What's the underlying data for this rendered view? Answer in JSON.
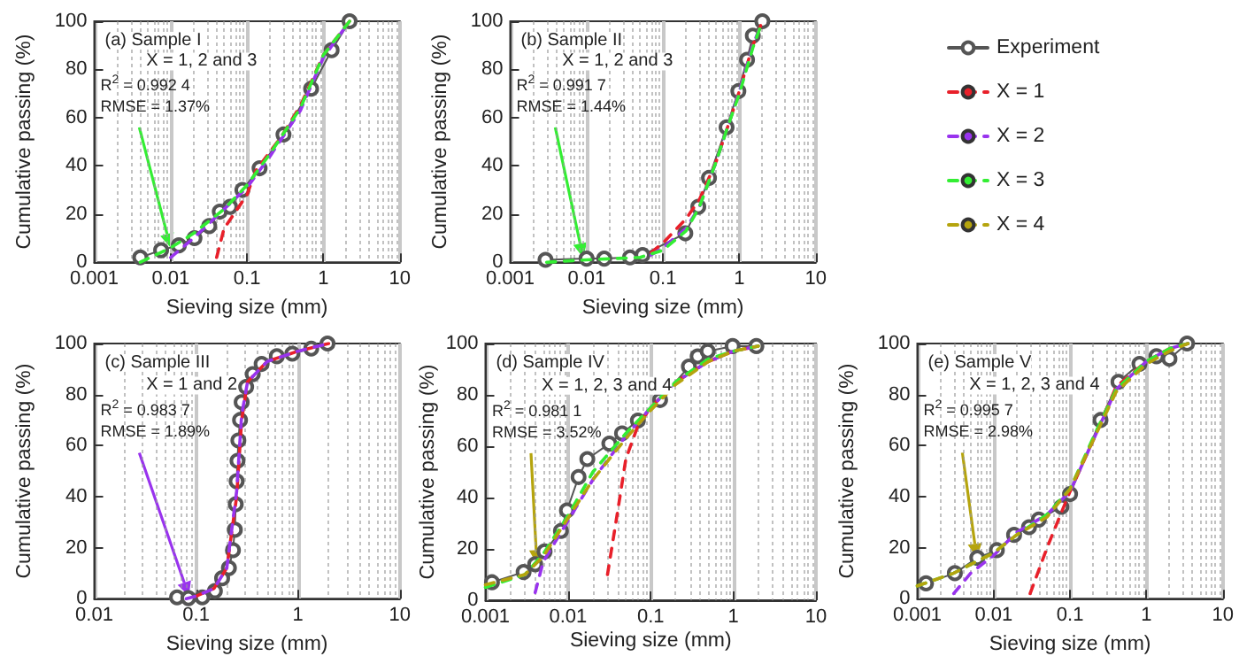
{
  "chart_data": [
    {
      "type": "line",
      "xlabel": "Sieving size (mm)",
      "ylabel": "Cumulative passing (%)",
      "log": "x",
      "grid": "x",
      "xlim": [
        0.001,
        10
      ],
      "xticks": [
        0.001,
        0.01,
        0.1,
        1,
        10
      ],
      "ylim": [
        0,
        100
      ],
      "yticks": [
        0,
        20,
        40,
        60,
        80,
        100
      ],
      "annotations": [
        "(a) Sample I",
        "X = 1, 2 and 3",
        {
          "text": "R$^{2}$ = 0.992 4\nRMSE = 1.37%",
          "x": 0.01,
          "y": 6
        }
      ],
      "series": [
        {
          "color": "#555555",
          "marker": "circle",
          "line_style": "solid",
          "x": [
            0.004,
            0.0075,
            0.0128,
            0.0205,
            0.032,
            0.044,
            0.06,
            0.087,
            0.146,
            0.3,
            0.69,
            1.28,
            2.2
          ],
          "values": [
            2,
            5,
            7,
            10,
            15,
            21,
            23,
            30,
            39,
            53,
            72,
            88,
            100
          ]
        },
        {
          "color": "#e8202a",
          "marker": "none",
          "line_style": "dashed",
          "x": [
            0.04,
            0.05,
            0.1,
            0.13,
            0.28,
            0.5,
            1,
            2.2
          ],
          "values": [
            2,
            14,
            28,
            38,
            52,
            65,
            86,
            100
          ]
        },
        {
          "color": "#9933ee",
          "marker": "none",
          "line_style": "dashed",
          "x": [
            0.01,
            0.02,
            0.05,
            0.1,
            0.2,
            0.5,
            1,
            2.2
          ],
          "values": [
            2,
            10,
            22,
            31,
            44,
            63,
            85,
            100
          ]
        },
        {
          "color": "#33ee33",
          "marker": "none",
          "line_style": "dashed",
          "x": [
            0.004,
            0.01,
            0.02,
            0.05,
            0.1,
            0.2,
            0.5,
            1,
            2.2
          ],
          "values": [
            0,
            6,
            12,
            22,
            32,
            45,
            64,
            86,
            100
          ]
        }
      ]
    },
    {
      "type": "line",
      "xlabel": "Sieving size (mm)",
      "ylabel": "Cumulative passing (%)",
      "log": "x",
      "grid": "x",
      "xlim": [
        0.001,
        10
      ],
      "xticks": [
        0.001,
        0.01,
        0.1,
        1,
        10
      ],
      "ylim": [
        0,
        100
      ],
      "yticks": [
        0,
        20,
        40,
        60,
        80,
        100
      ],
      "annotations": [
        "(b) Sample II",
        "X = 1, 2 and 3",
        {
          "text": "R$^{2}$ = 0.991 7\nRMSE = 1.44%",
          "x": 0.009,
          "y": 2
        }
      ],
      "series": [
        {
          "color": "#555555",
          "marker": "circle",
          "line_style": "solid",
          "x": [
            0.0029,
            0.01,
            0.017,
            0.037,
            0.054,
            0.196,
            0.29,
            0.4,
            0.68,
            0.97,
            1.26,
            1.5,
            2.0
          ],
          "values": [
            1,
            1.5,
            1.5,
            2,
            3,
            12,
            23,
            35,
            56,
            71,
            84,
            94,
            100
          ]
        },
        {
          "color": "#e8202a",
          "marker": "none",
          "line_style": "dashed",
          "x": [
            0.07,
            0.1,
            0.2,
            0.3,
            0.5,
            0.7,
            1,
            1.5,
            2
          ],
          "values": [
            4,
            8,
            18,
            26,
            42,
            56,
            71,
            90,
            100
          ]
        },
        {
          "color": "#9933ee",
          "marker": "none",
          "line_style": "dashed",
          "x": [
            0.07,
            0.1,
            0.2,
            0.3,
            0.5,
            0.7,
            1,
            1.5,
            2
          ],
          "values": [
            3,
            6,
            14,
            23,
            42,
            56,
            71,
            90,
            100
          ]
        },
        {
          "color": "#33ee33",
          "marker": "none",
          "line_style": "dashed",
          "x": [
            0.003,
            0.01,
            0.05,
            0.1,
            0.2,
            0.3,
            0.5,
            0.7,
            1,
            1.5,
            2
          ],
          "values": [
            0,
            1,
            2,
            5,
            13,
            23,
            42,
            56,
            70,
            89,
            100
          ]
        }
      ]
    },
    {
      "type": "line",
      "xlabel": "Sieving size (mm)",
      "ylabel": "Cumulative passing (%)",
      "log": "x",
      "grid": "x",
      "xlim": [
        0.01,
        10
      ],
      "xticks": [
        0.01,
        0.1,
        1,
        10
      ],
      "ylim": [
        0,
        100
      ],
      "yticks": [
        0,
        20,
        40,
        60,
        80,
        100
      ],
      "annotations": [
        "(c) Sample III",
        "X = 1 and 2",
        {
          "text": "R$^{2}$ = 0.983 7\nRMSE = 1.89%",
          "x": 0.085,
          "y": 1
        }
      ],
      "series": [
        {
          "color": "#555555",
          "marker": "circle",
          "line_style": "solid",
          "x": [
            0.065,
            0.084,
            0.115,
            0.153,
            0.18,
            0.21,
            0.23,
            0.24,
            0.245,
            0.25,
            0.255,
            0.26,
            0.27,
            0.28,
            0.31,
            0.36,
            0.44,
            0.62,
            0.88,
            1.35,
            1.95
          ],
          "values": [
            0.5,
            0.2,
            0.5,
            3,
            8,
            12,
            19,
            27,
            37,
            46,
            54,
            62,
            70,
            77,
            83,
            88,
            92,
            95,
            96,
            98,
            100
          ]
        },
        {
          "color": "#e8202a",
          "marker": "none",
          "line_style": "dashed",
          "x": [
            0.1,
            0.15,
            0.2,
            0.25,
            0.28,
            0.32,
            0.5,
            1,
            2
          ],
          "values": [
            1,
            4,
            12,
            40,
            70,
            85,
            93,
            97,
            100
          ]
        },
        {
          "color": "#9933ee",
          "marker": "none",
          "line_style": "dashed",
          "x": [
            0.08,
            0.1,
            0.15,
            0.2,
            0.25,
            0.28,
            0.32,
            0.5,
            1,
            2
          ],
          "values": [
            0,
            1,
            4,
            12,
            42,
            72,
            85,
            93,
            97,
            100
          ]
        }
      ]
    },
    {
      "type": "line",
      "xlabel": "Sieving size (mm)",
      "ylabel": "Cumulative passing (%)",
      "log": "x",
      "grid": "x",
      "legend": "top right",
      "xlim": [
        0.001,
        10
      ],
      "xticks": [
        0.001,
        0.01,
        0.1,
        1,
        10
      ],
      "ylim": [
        0,
        100
      ],
      "yticks": [
        0,
        20,
        40,
        60,
        80,
        100
      ],
      "annotations": [
        "(d) Sample IV",
        "X = 1, 2, 3 and 4",
        {
          "text": "R$^{2}$ = 0.981 1\nRMSE = 3.52%",
          "x": 0.0042,
          "y": 14
        }
      ],
      "series": [
        {
          "name": "Experiment",
          "color": "#555555",
          "marker": "circle",
          "line_style": "solid",
          "x": [
            0.0012,
            0.0029,
            0.004,
            0.0052,
            0.0082,
            0.0097,
            0.0134,
            0.0171,
            0.0316,
            0.045,
            0.07,
            0.13,
            0.29,
            0.37,
            0.49,
            0.98,
            1.9
          ],
          "values": [
            7,
            11,
            14,
            19,
            27,
            35,
            48,
            55,
            61,
            65,
            70,
            78,
            91,
            95,
            97,
            99,
            99
          ]
        },
        {
          "name": "X = 1",
          "color": "#e8202a",
          "marker": "none",
          "line_style": "dashed",
          "x": [
            0.03,
            0.04,
            0.05,
            0.07,
            0.1,
            0.2,
            0.5,
            1,
            2
          ],
          "values": [
            10,
            35,
            55,
            68,
            75,
            85,
            93,
            97,
            99
          ]
        },
        {
          "name": "X = 2",
          "color": "#9933ee",
          "marker": "none",
          "line_style": "dashed",
          "x": [
            0.004,
            0.005,
            0.01,
            0.02,
            0.05,
            0.1,
            0.2,
            0.5,
            1,
            2
          ],
          "values": [
            3,
            15,
            31,
            47,
            64,
            75,
            85,
            93,
            97,
            99
          ]
        },
        {
          "name": "X = 3",
          "color": "#33ee33",
          "marker": "none",
          "line_style": "dashed",
          "x": [
            0.001,
            0.003,
            0.005,
            0.01,
            0.02,
            0.05,
            0.1,
            0.2,
            0.5,
            1,
            2
          ],
          "values": [
            5,
            10,
            18,
            33,
            50,
            65,
            75,
            85,
            94,
            97,
            99
          ]
        },
        {
          "name": "X = 4",
          "color": "#b5a40e",
          "marker": "none",
          "line_style": "dashed",
          "x": [
            0.001,
            0.003,
            0.005,
            0.01,
            0.02,
            0.05,
            0.1,
            0.2,
            0.5,
            1,
            2
          ],
          "values": [
            6,
            10,
            17,
            32,
            47,
            63,
            74,
            84,
            93,
            97,
            99
          ]
        }
      ]
    },
    {
      "type": "line",
      "xlabel": "Sieving size (mm)",
      "ylabel": "Cumulative passing (%)",
      "log": "x",
      "grid": "x",
      "xlim": [
        0.001,
        10
      ],
      "xticks": [
        0.001,
        0.01,
        0.1,
        1,
        10
      ],
      "ylim": [
        0,
        100
      ],
      "yticks": [
        0,
        20,
        40,
        60,
        80,
        100
      ],
      "annotations": [
        "(e) Sample V",
        "X = 1, 2, 3 and 4",
        {
          "text": "R$^{2}$ = 0.995 7\nRMSE = 2.98%",
          "x": 0.006,
          "y": 16
        }
      ],
      "series": [
        {
          "color": "#555555",
          "marker": "circle",
          "line_style": "solid",
          "x": [
            0.0013,
            0.0031,
            0.0061,
            0.011,
            0.0185,
            0.029,
            0.039,
            0.077,
            0.1,
            0.25,
            0.43,
            0.81,
            1.35,
            2.0,
            3.4
          ],
          "values": [
            6,
            10,
            16,
            19,
            25,
            28,
            31,
            36,
            41,
            70,
            85,
            92,
            95,
            94,
            100
          ]
        },
        {
          "color": "#e8202a",
          "marker": "none",
          "line_style": "dashed",
          "x": [
            0.03,
            0.05,
            0.08,
            0.1,
            0.2,
            0.4,
            1,
            2,
            3.5
          ],
          "values": [
            2,
            20,
            35,
            42,
            62,
            83,
            93,
            98,
            100
          ]
        },
        {
          "color": "#9933ee",
          "marker": "none",
          "line_style": "dashed",
          "x": [
            0.003,
            0.005,
            0.01,
            0.02,
            0.05,
            0.1,
            0.2,
            0.4,
            1,
            2,
            3.5
          ],
          "values": [
            2,
            10,
            17,
            26,
            33,
            42,
            62,
            82,
            93,
            98,
            100
          ]
        },
        {
          "color": "#33ee33",
          "marker": "none",
          "line_style": "dashed",
          "x": [
            0.001,
            0.003,
            0.01,
            0.02,
            0.05,
            0.1,
            0.2,
            0.4,
            1,
            2,
            3.5
          ],
          "values": [
            5,
            10,
            18,
            25,
            33,
            43,
            63,
            82,
            93,
            98,
            100
          ]
        },
        {
          "color": "#b5a40e",
          "marker": "none",
          "line_style": "dashed",
          "x": [
            0.001,
            0.003,
            0.01,
            0.02,
            0.05,
            0.1,
            0.2,
            0.4,
            1,
            2,
            3.5
          ],
          "values": [
            5,
            10,
            18,
            25,
            32,
            43,
            62,
            81,
            92,
            97,
            100
          ]
        }
      ]
    }
  ]
}
